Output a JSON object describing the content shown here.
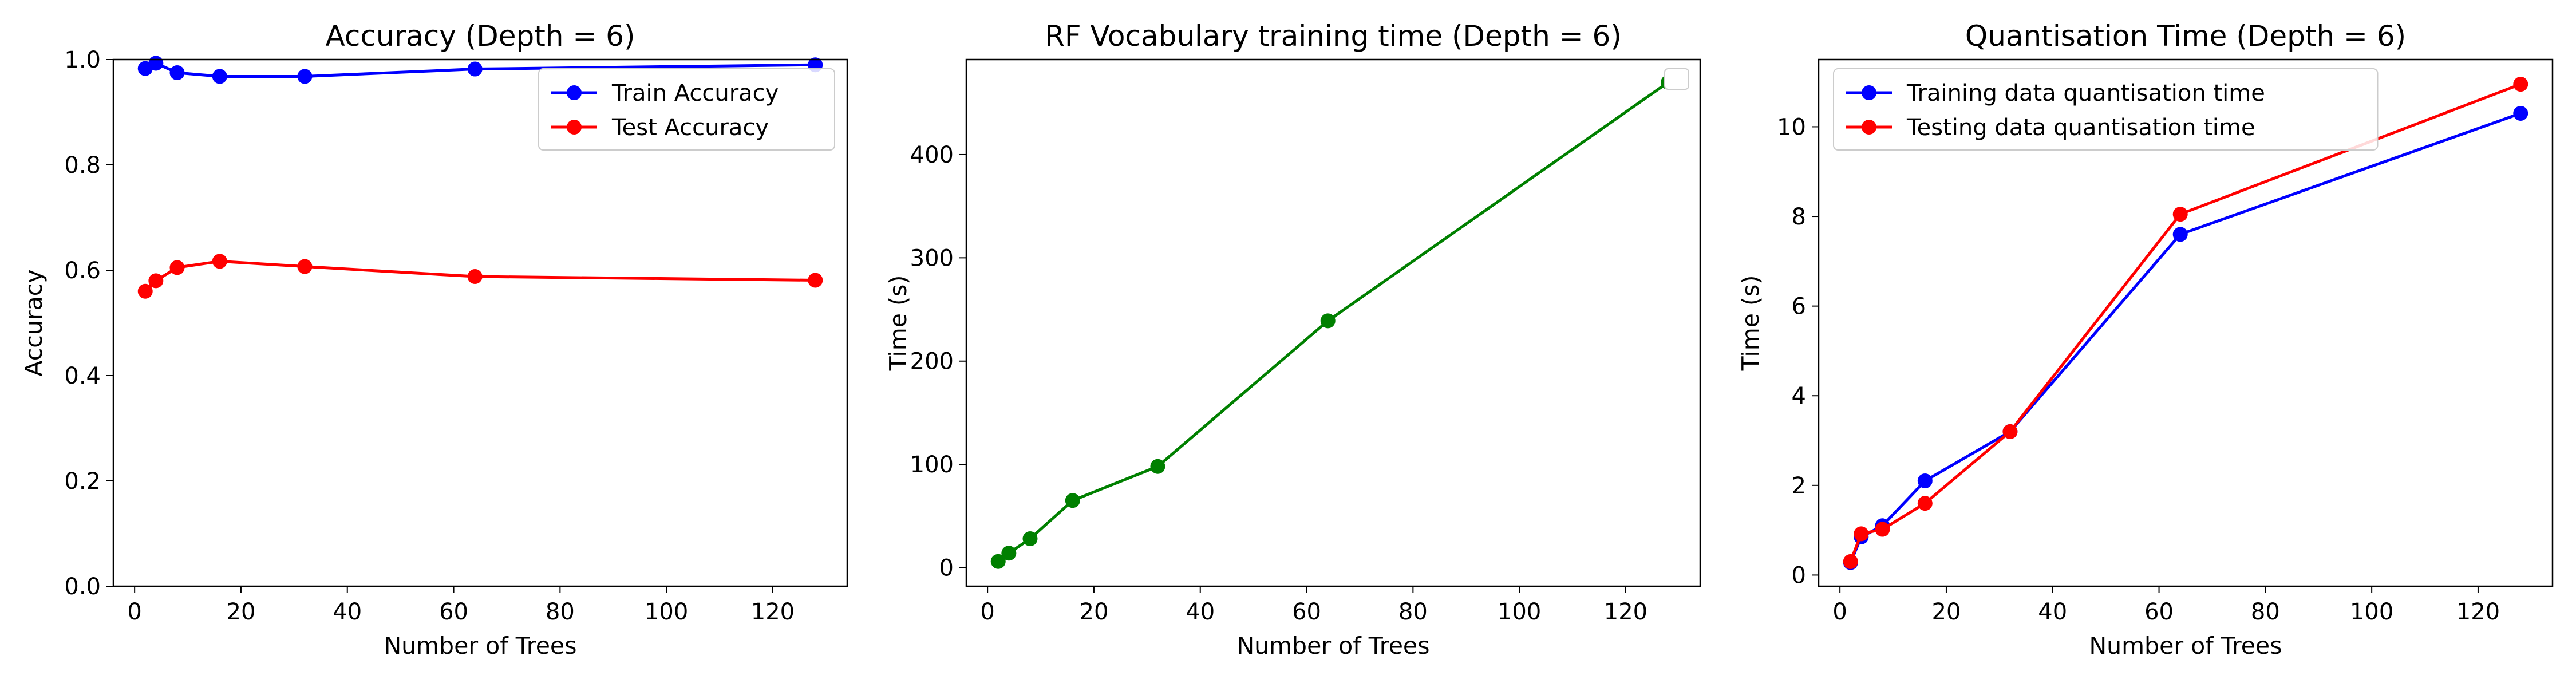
{
  "chart_data": [
    {
      "type": "line",
      "title": "Accuracy (Depth = 6)",
      "xlabel": "Number of Trees",
      "ylabel": "Accuracy",
      "xlim": [
        -4,
        134
      ],
      "ylim": [
        0.0,
        1.0
      ],
      "xticks": [
        0,
        20,
        40,
        60,
        80,
        100,
        120
      ],
      "yticks": [
        0.0,
        0.2,
        0.4,
        0.6,
        0.8,
        1.0
      ],
      "xtick_labels": [
        "0",
        "20",
        "40",
        "60",
        "80",
        "100",
        "120"
      ],
      "ytick_labels": [
        "0.0",
        "0.2",
        "0.4",
        "0.6",
        "0.8",
        "1.0"
      ],
      "legend": "top-right",
      "grid": false,
      "x": [
        2,
        4,
        8,
        16,
        32,
        64,
        128
      ],
      "series": [
        {
          "name": "Train Accuracy",
          "color": "#0000ff",
          "values": [
            0.983,
            0.993,
            0.975,
            0.968,
            0.968,
            0.982,
            0.99
          ]
        },
        {
          "name": "Test Accuracy",
          "color": "#ff0000",
          "values": [
            0.56,
            0.58,
            0.605,
            0.617,
            0.607,
            0.588,
            0.581
          ]
        }
      ]
    },
    {
      "type": "line",
      "title": "RF Vocabulary training time (Depth = 6)",
      "xlabel": "Number of Trees",
      "ylabel": "Time (s)",
      "xlim": [
        -4,
        134
      ],
      "ylim": [
        -18,
        492
      ],
      "xticks": [
        0,
        20,
        40,
        60,
        80,
        100,
        120
      ],
      "yticks": [
        0,
        100,
        200,
        300,
        400
      ],
      "xtick_labels": [
        "0",
        "20",
        "40",
        "60",
        "80",
        "100",
        "120"
      ],
      "ytick_labels": [
        "0",
        "100",
        "200",
        "300",
        "400"
      ],
      "legend": "top-right",
      "grid": false,
      "x": [
        2,
        4,
        8,
        16,
        32,
        64,
        128
      ],
      "series": [
        {
          "name": "",
          "color": "#008000",
          "values": [
            6,
            14,
            28,
            65,
            98,
            239,
            470
          ]
        }
      ]
    },
    {
      "type": "line",
      "title": "Quantisation Time (Depth = 6)",
      "xlabel": "Number of Trees",
      "ylabel": "Time (s)",
      "xlim": [
        -4,
        134
      ],
      "ylim": [
        -0.25,
        11.5
      ],
      "xticks": [
        0,
        20,
        40,
        60,
        80,
        100,
        120
      ],
      "yticks": [
        0,
        2,
        4,
        6,
        8,
        10
      ],
      "xtick_labels": [
        "0",
        "20",
        "40",
        "60",
        "80",
        "100",
        "120"
      ],
      "ytick_labels": [
        "0",
        "2",
        "4",
        "6",
        "8",
        "10"
      ],
      "legend": "top-left",
      "grid": false,
      "x": [
        2,
        4,
        8,
        16,
        32,
        64,
        128
      ],
      "series": [
        {
          "name": "Training data quantisation time",
          "color": "#0000ff",
          "values": [
            0.28,
            0.85,
            1.1,
            2.1,
            3.2,
            7.6,
            10.3
          ]
        },
        {
          "name": "Testing data quantisation time",
          "color": "#ff0000",
          "values": [
            0.3,
            0.92,
            1.02,
            1.6,
            3.2,
            8.05,
            10.95
          ]
        }
      ]
    }
  ]
}
